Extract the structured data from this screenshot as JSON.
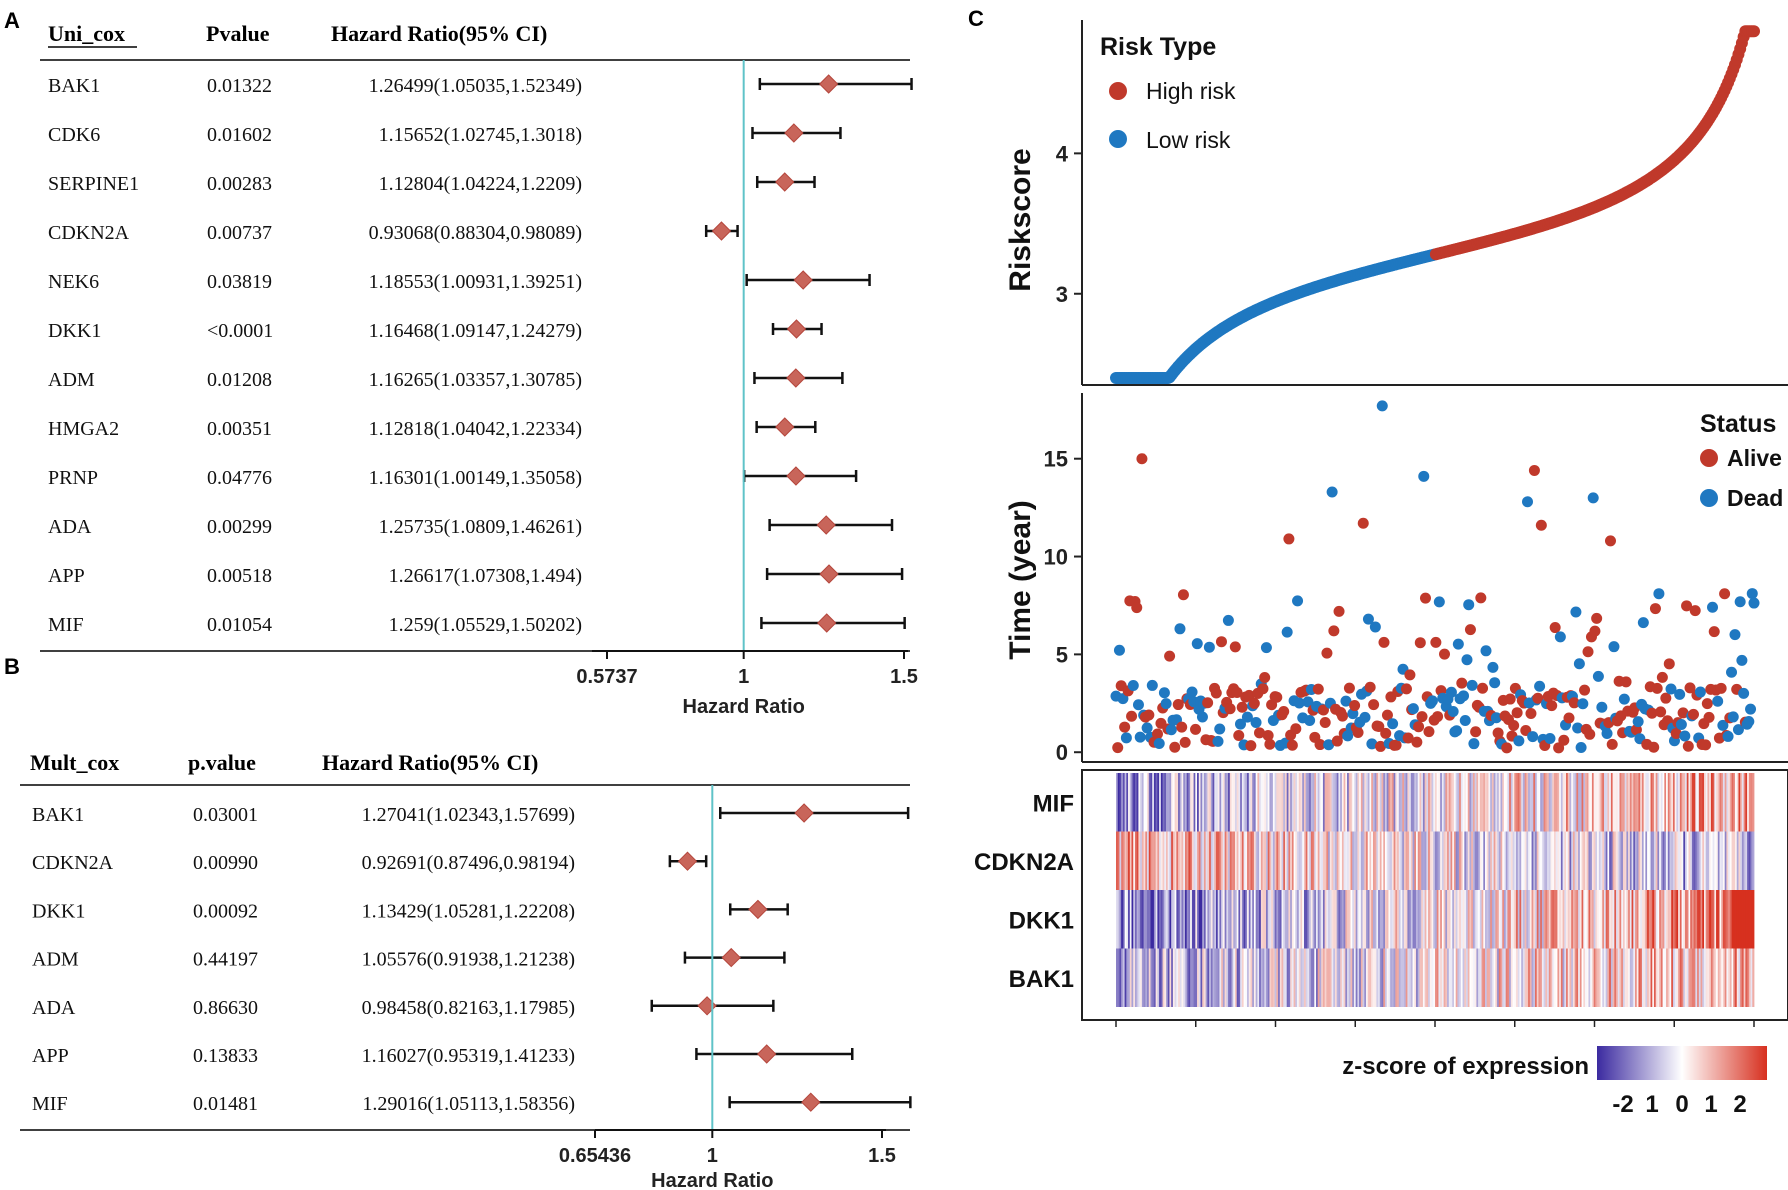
{
  "panel_letters": {
    "a": "A",
    "b": "B",
    "c": "C"
  },
  "colors": {
    "diamond_fill": "#c8655a",
    "diamond_stroke": "#b5463c",
    "ref_line": "#5fc3c8",
    "high_risk": "#c0392b",
    "low_risk": "#1f78c1",
    "alive": "#c0392b",
    "dead": "#1f78c1",
    "heat_low": "#3b2aa0",
    "heat_mid": "#ffffff",
    "heat_high": "#d7301f"
  },
  "chart_data": [
    {
      "id": "A",
      "type": "forest",
      "headers": {
        "gene": "Uni_cox",
        "p": "Pvalue",
        "ci": "Hazard Ratio(95% CI)"
      },
      "xlabel": "Hazard Ratio",
      "ref_value": 1,
      "xlim": [
        0.5737,
        1.5
      ],
      "ticks": [
        {
          "v": 0.5737,
          "label": "0.5737"
        },
        {
          "v": 1,
          "label": "1"
        },
        {
          "v": 1.5,
          "label": "1.5"
        }
      ],
      "rows": [
        {
          "gene": "BAK1",
          "p": "0.01322",
          "ci": "1.26499(1.05035,1.52349)",
          "hr": 1.26499,
          "lo": 1.05035,
          "hi": 1.52349
        },
        {
          "gene": "CDK6",
          "p": "0.01602",
          "ci": "1.15652(1.02745,1.3018)",
          "hr": 1.15652,
          "lo": 1.02745,
          "hi": 1.3018
        },
        {
          "gene": "SERPINE1",
          "p": "0.00283",
          "ci": "1.12804(1.04224,1.2209)",
          "hr": 1.12804,
          "lo": 1.04224,
          "hi": 1.2209
        },
        {
          "gene": "CDKN2A",
          "p": "0.00737",
          "ci": "0.93068(0.88304,0.98089)",
          "hr": 0.93068,
          "lo": 0.88304,
          "hi": 0.98089
        },
        {
          "gene": "NEK6",
          "p": "0.03819",
          "ci": "1.18553(1.00931,1.39251)",
          "hr": 1.18553,
          "lo": 1.00931,
          "hi": 1.39251
        },
        {
          "gene": "DKK1",
          "p": "<0.0001",
          "ci": "1.16468(1.09147,1.24279)",
          "hr": 1.16468,
          "lo": 1.09147,
          "hi": 1.24279
        },
        {
          "gene": "ADM",
          "p": "0.01208",
          "ci": "1.16265(1.03357,1.30785)",
          "hr": 1.16265,
          "lo": 1.03357,
          "hi": 1.30785
        },
        {
          "gene": "HMGA2",
          "p": "0.00351",
          "ci": "1.12818(1.04042,1.22334)",
          "hr": 1.12818,
          "lo": 1.04042,
          "hi": 1.22334
        },
        {
          "gene": "PRNP",
          "p": "0.04776",
          "ci": "1.16301(1.00149,1.35058)",
          "hr": 1.16301,
          "lo": 1.00149,
          "hi": 1.35058
        },
        {
          "gene": "ADA",
          "p": "0.00299",
          "ci": "1.25735(1.0809,1.46261)",
          "hr": 1.25735,
          "lo": 1.0809,
          "hi": 1.46261
        },
        {
          "gene": "APP",
          "p": "0.00518",
          "ci": "1.26617(1.07308,1.494)",
          "hr": 1.26617,
          "lo": 1.07308,
          "hi": 1.494
        },
        {
          "gene": "MIF",
          "p": "0.01054",
          "ci": "1.259(1.05529,1.50202)",
          "hr": 1.259,
          "lo": 1.05529,
          "hi": 1.50202
        }
      ]
    },
    {
      "id": "B",
      "type": "forest",
      "headers": {
        "gene": "Mult_cox",
        "p": "p.value",
        "ci": "Hazard Ratio(95% CI)"
      },
      "xlabel": "Hazard Ratio",
      "ref_value": 1,
      "xlim": [
        0.65436,
        1.5
      ],
      "ticks": [
        {
          "v": 0.65436,
          "label": "0.65436"
        },
        {
          "v": 1,
          "label": "1"
        },
        {
          "v": 1.5,
          "label": "1.5"
        }
      ],
      "rows": [
        {
          "gene": "BAK1",
          "p": "0.03001",
          "ci": "1.27041(1.02343,1.57699)",
          "hr": 1.27041,
          "lo": 1.02343,
          "hi": 1.57699
        },
        {
          "gene": "CDKN2A",
          "p": "0.00990",
          "ci": "0.92691(0.87496,0.98194)",
          "hr": 0.92691,
          "lo": 0.87496,
          "hi": 0.98194
        },
        {
          "gene": "DKK1",
          "p": "0.00092",
          "ci": "1.13429(1.05281,1.22208)",
          "hr": 1.13429,
          "lo": 1.05281,
          "hi": 1.22208
        },
        {
          "gene": "ADM",
          "p": "0.44197",
          "ci": "1.05576(0.91938,1.21238)",
          "hr": 1.05576,
          "lo": 0.91938,
          "hi": 1.21238
        },
        {
          "gene": "ADA",
          "p": "0.86630",
          "ci": "0.98458(0.82163,1.17985)",
          "hr": 0.98458,
          "lo": 0.82163,
          "hi": 1.17985
        },
        {
          "gene": "APP",
          "p": "0.13833",
          "ci": "1.16027(0.95319,1.41233)",
          "hr": 1.16027,
          "lo": 0.95319,
          "hi": 1.41233
        },
        {
          "gene": "MIF",
          "p": "0.01481",
          "ci": "1.29016(1.05113,1.58356)",
          "hr": 1.29016,
          "lo": 1.05113,
          "hi": 1.58356
        }
      ]
    },
    {
      "id": "C-risk",
      "type": "scatter",
      "ylabel": "Riskscore",
      "ylim": [
        2.35,
        4.95
      ],
      "yticks": [
        3,
        4
      ],
      "legend_title": "Risk Type",
      "legend": [
        "High risk",
        "Low risk"
      ],
      "n_points": 370,
      "n_low": 185,
      "min": 2.4,
      "max": 4.87
    },
    {
      "id": "C-time",
      "type": "scatter",
      "ylabel": "Time (year)",
      "ylim": [
        -0.5,
        18
      ],
      "yticks": [
        0,
        5,
        10,
        15
      ],
      "legend_title": "Status",
      "legend": [
        "Alive",
        "Dead"
      ],
      "n_points": 370,
      "highlights": [
        {
          "i": 15,
          "t": 15.0,
          "s": "Alive"
        },
        {
          "i": 100,
          "t": 10.9,
          "s": "Alive"
        },
        {
          "i": 125,
          "t": 13.3,
          "s": "Dead"
        },
        {
          "i": 143,
          "t": 11.7,
          "s": "Alive"
        },
        {
          "i": 154,
          "t": 17.7,
          "s": "Dead"
        },
        {
          "i": 178,
          "t": 14.1,
          "s": "Dead"
        },
        {
          "i": 238,
          "t": 12.8,
          "s": "Dead"
        },
        {
          "i": 242,
          "t": 14.4,
          "s": "Alive"
        },
        {
          "i": 246,
          "t": 11.6,
          "s": "Alive"
        },
        {
          "i": 276,
          "t": 13.0,
          "s": "Dead"
        },
        {
          "i": 286,
          "t": 10.8,
          "s": "Alive"
        }
      ]
    },
    {
      "id": "C-heatmap",
      "type": "heatmap",
      "rows": [
        "MIF",
        "CDKN2A",
        "DKK1",
        "BAK1"
      ],
      "n_columns": 370,
      "legend_title": "z-score of expression",
      "scale_ticks": [
        "-2",
        "1",
        "0",
        "1",
        "2"
      ]
    }
  ]
}
